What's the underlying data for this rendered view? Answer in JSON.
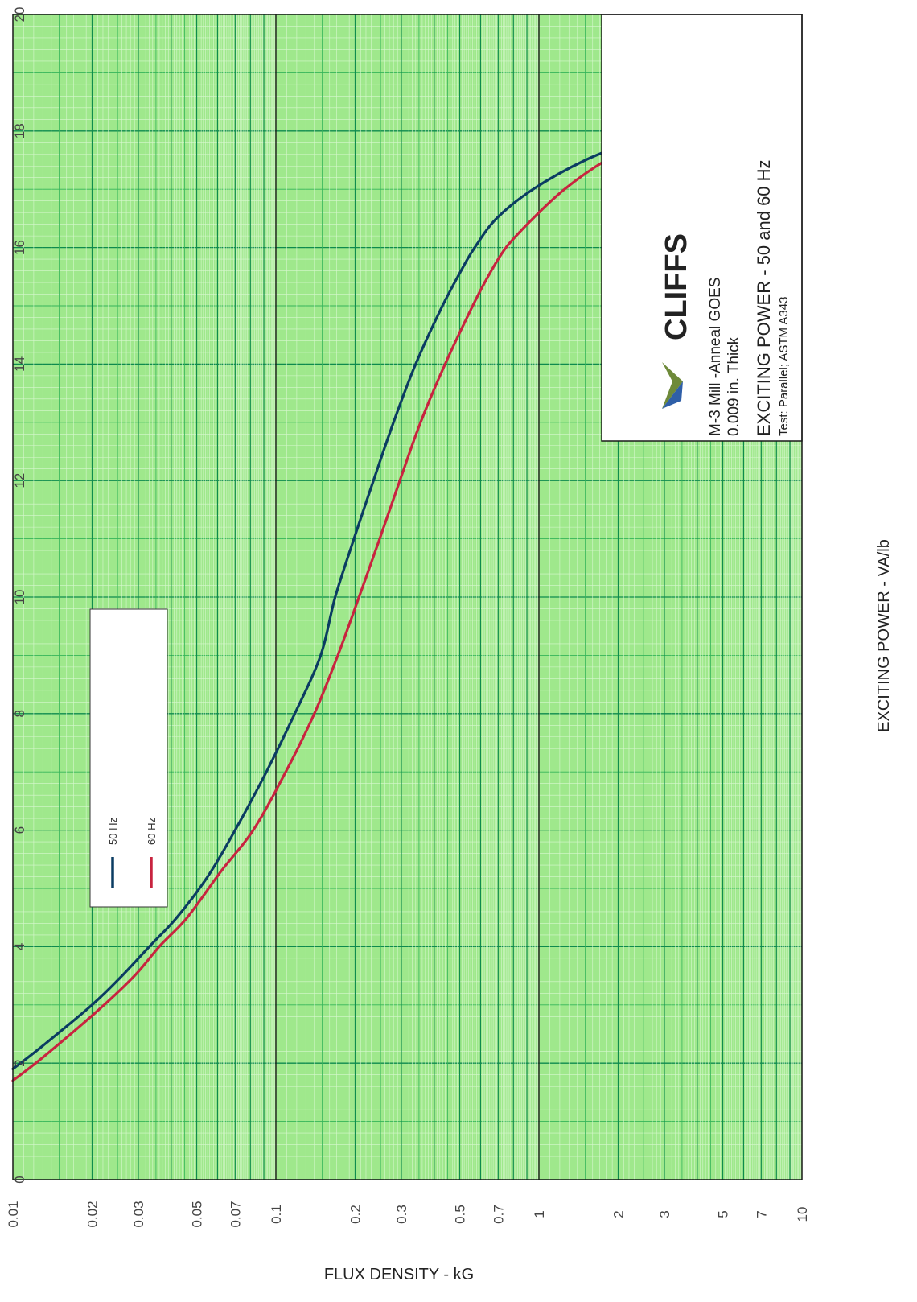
{
  "chart_data": {
    "type": "line",
    "xlabel": "FLUX DENSITY   - kG",
    "ylabel": "EXCITING POWER   - VA/lb",
    "x_scale": "linear",
    "y_scale": "log",
    "xlim": [
      0,
      20
    ],
    "ylim": [
      0.01,
      10
    ],
    "x_ticks": [
      "0",
      "2",
      "4",
      "6",
      "8",
      "10",
      "12",
      "14",
      "16",
      "18",
      "20"
    ],
    "y_ticks": [
      {
        "value": 0.01,
        "label": "0.01"
      },
      {
        "value": 0.02,
        "label": "0.02"
      },
      {
        "value": 0.03,
        "label": "0.03"
      },
      {
        "value": 0.05,
        "label": "0.05"
      },
      {
        "value": 0.07,
        "label": "0.07"
      },
      {
        "value": 0.1,
        "label": "0.1"
      },
      {
        "value": 0.2,
        "label": "0.2"
      },
      {
        "value": 0.3,
        "label": "0.3"
      },
      {
        "value": 0.5,
        "label": "0.5"
      },
      {
        "value": 0.7,
        "label": "0.7"
      },
      {
        "value": 1,
        "label": "1"
      },
      {
        "value": 2,
        "label": "2"
      },
      {
        "value": 3,
        "label": "3"
      },
      {
        "value": 5,
        "label": "5"
      },
      {
        "value": 7,
        "label": "7"
      },
      {
        "value": 10,
        "label": "10"
      }
    ],
    "grid": true,
    "legend_position": "upper-left",
    "series": [
      {
        "name": "50 Hz",
        "color": "#0b3c62",
        "points": [
          [
            1.9,
            0.01
          ],
          [
            2.3,
            0.013
          ],
          [
            3.0,
            0.02
          ],
          [
            3.5,
            0.026
          ],
          [
            4.0,
            0.033
          ],
          [
            4.5,
            0.042
          ],
          [
            5.2,
            0.055
          ],
          [
            6.0,
            0.07
          ],
          [
            7.0,
            0.092
          ],
          [
            8.0,
            0.118
          ],
          [
            9.0,
            0.148
          ],
          [
            10.0,
            0.168
          ],
          [
            11.0,
            0.198
          ],
          [
            12.0,
            0.235
          ],
          [
            13.0,
            0.28
          ],
          [
            14.0,
            0.34
          ],
          [
            15.0,
            0.43
          ],
          [
            15.7,
            0.52
          ],
          [
            16.0,
            0.57
          ],
          [
            16.5,
            0.69
          ],
          [
            17.0,
            0.95
          ],
          [
            17.5,
            1.5
          ],
          [
            17.9,
            2.5
          ],
          [
            18.2,
            3.6
          ],
          [
            18.5,
            5.4
          ],
          [
            18.9,
            9.5
          ]
        ]
      },
      {
        "name": "60 Hz",
        "color": "#c8243f",
        "points": [
          [
            1.7,
            0.01
          ],
          [
            2.1,
            0.013
          ],
          [
            2.9,
            0.021
          ],
          [
            3.5,
            0.029
          ],
          [
            4.0,
            0.036
          ],
          [
            4.5,
            0.046
          ],
          [
            5.3,
            0.062
          ],
          [
            6.0,
            0.082
          ],
          [
            7.0,
            0.109
          ],
          [
            8.0,
            0.14
          ],
          [
            9.0,
            0.172
          ],
          [
            10.0,
            0.207
          ],
          [
            11.0,
            0.248
          ],
          [
            12.0,
            0.296
          ],
          [
            13.0,
            0.355
          ],
          [
            14.0,
            0.44
          ],
          [
            15.0,
            0.56
          ],
          [
            15.5,
            0.64
          ],
          [
            16.0,
            0.75
          ],
          [
            16.5,
            0.95
          ],
          [
            17.0,
            1.25
          ],
          [
            17.5,
            1.8
          ],
          [
            17.8,
            2.5
          ],
          [
            18.2,
            3.6
          ],
          [
            18.5,
            5.2
          ],
          [
            18.8,
            9.5
          ]
        ]
      }
    ],
    "legend": [
      {
        "label": "50 Hz",
        "color": "#0b3c62"
      },
      {
        "label": "60 Hz",
        "color": "#c8243f"
      }
    ]
  },
  "info_box": {
    "brand": "CLIFFS",
    "line1": "M-3 Mill -Anneal GOES",
    "line2": "0.009 in. Thick",
    "title": "EXCITING POWER    - 50 and 60 Hz",
    "test": "Test: Parallel; ASTM A343"
  },
  "colors": {
    "plot_bg": "#9fe88c",
    "minor_grid": "#d8f7cf",
    "mid_grid": "#35b55a",
    "major_grid": "#0e8a4e",
    "decade": "#1a1a1a",
    "logo_green": "#6e8a3a",
    "logo_blue": "#2f5fa8"
  }
}
